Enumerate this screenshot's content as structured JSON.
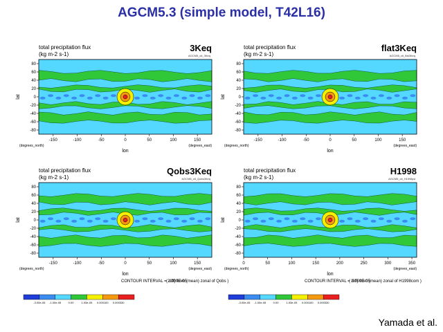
{
  "header": {
    "title": "AGCM5.3 (simple model, T42L16)"
  },
  "common": {
    "plot_title": "total precipitation flux",
    "units": "(kg m-2 s-1)",
    "ylabel": "lat",
    "xlabel": "lon",
    "xunit": "(degrees_east)",
    "yunit": "(degrees_north)",
    "contour_interval": "CONTOUR INTERVAL = 2.000E-05",
    "colorbar_labels": [
      "-3.00e-05",
      "-1.00e-05",
      "0.00",
      "1.00e-05",
      "0.000100",
      "0.000330"
    ],
    "colorbar_colors": [
      "#1f3dd8",
      "#3a8cf0",
      "#55d8ff",
      "#30c838",
      "#f5f000",
      "#f59a10",
      "#e82020"
    ]
  },
  "panels": [
    {
      "name": "3Keq",
      "id": "AGCM5_ctl_3Keq",
      "note": ""
    },
    {
      "name": "flat3Keq",
      "id": "AGCM5_ctl_flat3Keq",
      "note": ""
    },
    {
      "name": "Qobs3Keq",
      "id": "AGCM5_ctl_Qobs3Keq",
      "note": "( diff) from (mean) zonal of Qobs )"
    },
    {
      "name": "H1998",
      "id": "AGCM5_ctl_H1998pd",
      "note": "( diff) from (mean) zonal of H1998com )"
    }
  ],
  "credit": "Yamada et al.",
  "chart_data": [
    {
      "type": "heatmap",
      "title": "3Keq",
      "xlabel": "lon",
      "ylabel": "lat",
      "xticks": [
        "-150",
        "-100",
        "-50",
        "0",
        "50",
        "100",
        "150"
      ],
      "xlim": [
        -180,
        180
      ],
      "yticks": [
        "80",
        "60",
        "40",
        "20",
        "0",
        "-20",
        "-40",
        "-60",
        "-80"
      ],
      "ylim": [
        -90,
        90
      ],
      "hotspot": {
        "lon": 0,
        "lat": 0
      }
    },
    {
      "type": "heatmap",
      "title": "flat3Keq",
      "xlabel": "lon",
      "ylabel": "lat",
      "xticks": [
        "-150",
        "-100",
        "-50",
        "0",
        "50",
        "100",
        "150"
      ],
      "xlim": [
        -180,
        180
      ],
      "yticks": [
        "80",
        "60",
        "40",
        "20",
        "0",
        "-20",
        "-40",
        "-60",
        "-80"
      ],
      "ylim": [
        -90,
        90
      ],
      "hotspot": {
        "lon": 0,
        "lat": 0
      }
    },
    {
      "type": "heatmap",
      "title": "Qobs3Keq",
      "xlabel": "lon",
      "ylabel": "lat",
      "xticks": [
        "-150",
        "-100",
        "-50",
        "0",
        "50",
        "100",
        "150"
      ],
      "xlim": [
        -180,
        180
      ],
      "yticks": [
        "80",
        "60",
        "40",
        "20",
        "0",
        "-20",
        "-40",
        "-60",
        "-80"
      ],
      "ylim": [
        -90,
        90
      ],
      "hotspot": {
        "lon": 0,
        "lat": 0
      }
    },
    {
      "type": "heatmap",
      "title": "H1998",
      "xlabel": "lon",
      "ylabel": "lat",
      "xticks": [
        "0",
        "50",
        "100",
        "150",
        "200",
        "250",
        "300",
        "350"
      ],
      "xlim": [
        0,
        360
      ],
      "yticks": [
        "80",
        "60",
        "40",
        "20",
        "0",
        "-20",
        "-40",
        "-60",
        "-80"
      ],
      "ylim": [
        -90,
        90
      ],
      "hotspot": {
        "lon": 180,
        "lat": 0
      }
    }
  ]
}
